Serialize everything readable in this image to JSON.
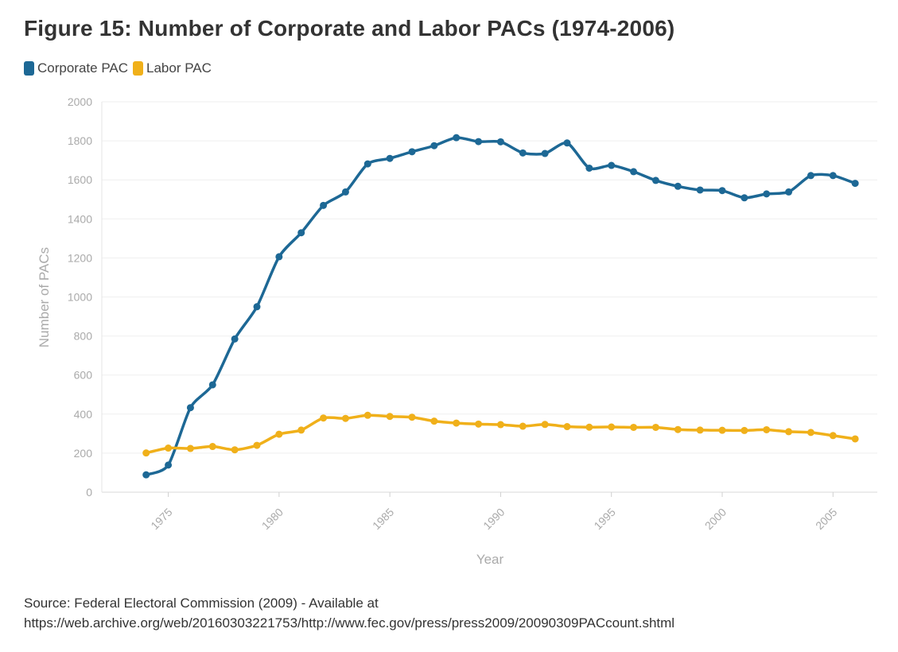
{
  "title": "Figure 15: Number of Corporate and Labor PACs (1974-2006)",
  "source": {
    "line1": "Source: Federal Electoral Commission (2009) - Available at",
    "line2": "https://web.archive.org/web/20160303221753/http://www.fec.gov/press/press2009/20090309PACcount.shtml"
  },
  "chart_data": {
    "type": "line",
    "xlabel": "Year",
    "ylabel": "Number of PACs",
    "xlim": [
      1972,
      2007
    ],
    "ylim": [
      0,
      2000
    ],
    "xticks": [
      1975,
      1980,
      1985,
      1990,
      1995,
      2000,
      2005
    ],
    "yticks": [
      0,
      200,
      400,
      600,
      800,
      1000,
      1200,
      1400,
      1600,
      1800,
      2000
    ],
    "grid": true,
    "legend_position": "top-left",
    "x": [
      1974,
      1975,
      1976,
      1977,
      1978,
      1979,
      1980,
      1981,
      1982,
      1983,
      1984,
      1985,
      1986,
      1987,
      1988,
      1989,
      1990,
      1991,
      1992,
      1993,
      1994,
      1995,
      1996,
      1997,
      1998,
      1999,
      2000,
      2001,
      2002,
      2003,
      2004,
      2005,
      2006
    ],
    "series": [
      {
        "name": "Corporate PAC",
        "color": "#1d6895",
        "values": [
          89,
          139,
          433,
          550,
          785,
          950,
          1206,
          1329,
          1469,
          1538,
          1682,
          1710,
          1744,
          1775,
          1816,
          1796,
          1795,
          1738,
          1735,
          1789,
          1660,
          1674,
          1642,
          1597,
          1567,
          1548,
          1545,
          1508,
          1528,
          1538,
          1622,
          1622,
          1582
        ]
      },
      {
        "name": "Labor PAC",
        "color": "#f0b01a",
        "values": [
          201,
          226,
          224,
          234,
          217,
          240,
          297,
          318,
          380,
          378,
          394,
          388,
          384,
          364,
          354,
          349,
          346,
          338,
          347,
          336,
          333,
          334,
          332,
          332,
          321,
          318,
          317,
          316,
          320,
          310,
          306,
          290,
          273
        ]
      }
    ]
  }
}
